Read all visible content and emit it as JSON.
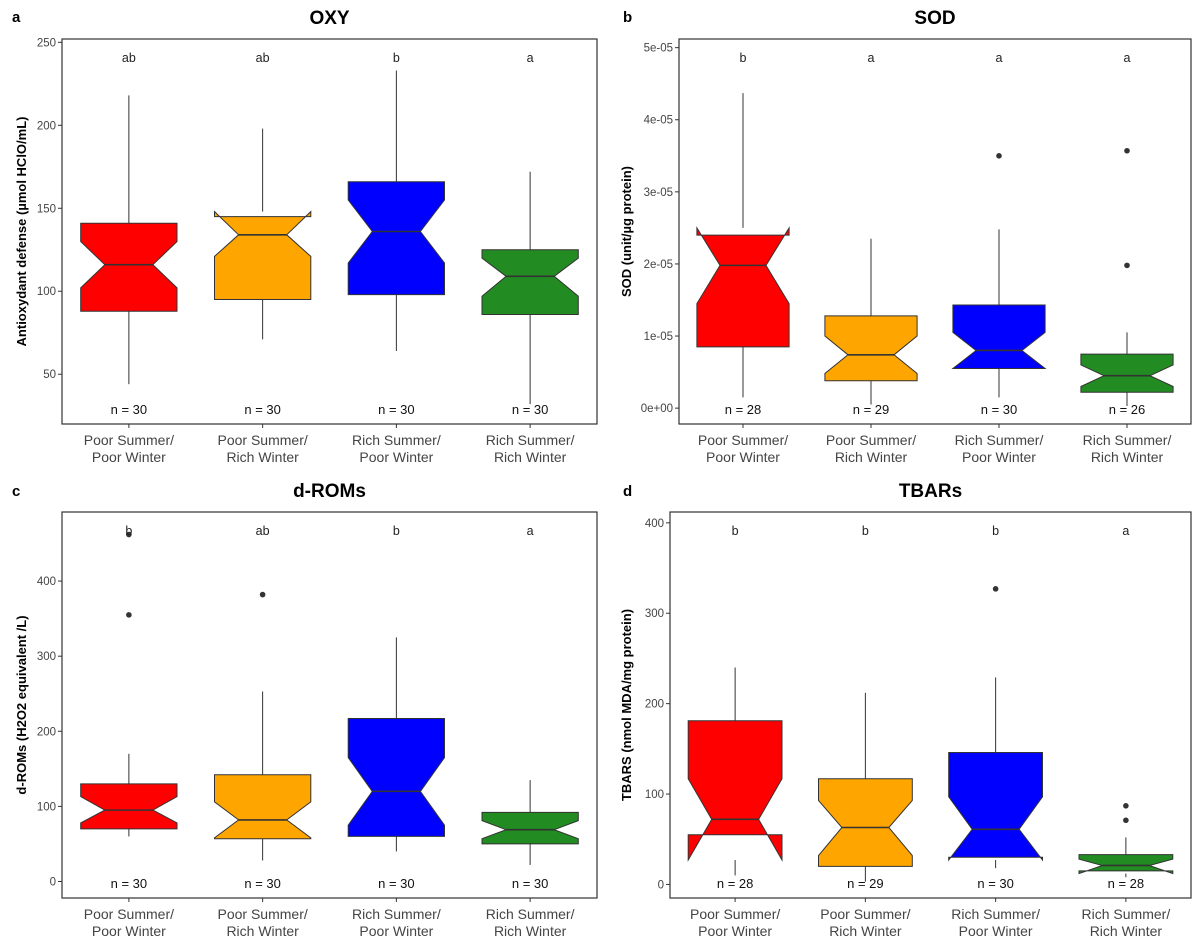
{
  "chart_data": [
    {
      "type": "box",
      "panel_label": "a",
      "title": "OXY",
      "ylabel": "Antioxydant defense (µmol HClO/mL)",
      "ylim": [
        20,
        252
      ],
      "yticks": [
        50,
        100,
        150,
        200,
        250
      ],
      "ytick_labels": [
        "50",
        "100",
        "150",
        "200",
        "250"
      ],
      "categories": [
        "Poor Summer/\nPoor Winter",
        "Poor Summer/\nRich Winter",
        "Rich Summer/\nPoor Winter",
        "Rich Summer/\nRich Winter"
      ],
      "colors": [
        "#ff0000",
        "#ffa500",
        "#0000ff",
        "#228b22"
      ],
      "letters": [
        "ab",
        "ab",
        "b",
        "a"
      ],
      "n_labels": [
        "n = 30",
        "n = 30",
        "n = 30",
        "n = 30"
      ],
      "boxes": [
        {
          "lower_whisker": 44,
          "q1": 88,
          "median": 116,
          "q3": 141,
          "upper_whisker": 218,
          "notch_low": 102,
          "notch_high": 130,
          "outliers": []
        },
        {
          "lower_whisker": 71,
          "q1": 95,
          "median": 134,
          "q3": 145,
          "upper_whisker": 198,
          "notch_low": 121,
          "notch_high": 148,
          "outliers": []
        },
        {
          "lower_whisker": 64,
          "q1": 98,
          "median": 136,
          "q3": 166,
          "upper_whisker": 233,
          "notch_low": 117,
          "notch_high": 155,
          "outliers": []
        },
        {
          "lower_whisker": 32,
          "q1": 86,
          "median": 109,
          "q3": 125,
          "upper_whisker": 172,
          "notch_low": 97,
          "notch_high": 120,
          "outliers": []
        }
      ]
    },
    {
      "type": "box",
      "panel_label": "b",
      "title": "SOD",
      "ylabel": "SOD (unit/µg protein)",
      "ylim": [
        -2.2e-06,
        5.12e-05
      ],
      "yticks": [
        0,
        1e-05,
        2e-05,
        3e-05,
        4e-05,
        5e-05
      ],
      "ytick_labels": [
        "0e+00",
        "1e-05",
        "2e-05",
        "3e-05",
        "4e-05",
        "5e-05"
      ],
      "categories": [
        "Poor Summer/\nPoor Winter",
        "Poor Summer/\nRich Winter",
        "Rich Summer/\nPoor Winter",
        "Rich Summer/\nRich Winter"
      ],
      "colors": [
        "#ff0000",
        "#ffa500",
        "#0000ff",
        "#228b22"
      ],
      "letters": [
        "b",
        "a",
        "a",
        "a"
      ],
      "n_labels": [
        "n = 28",
        "n = 29",
        "n = 30",
        "n = 26"
      ],
      "boxes": [
        {
          "lower_whisker": 1.5e-06,
          "q1": 8.5e-06,
          "median": 1.98e-05,
          "q3": 2.4e-05,
          "upper_whisker": 4.37e-05,
          "notch_low": 1.45e-05,
          "notch_high": 2.5e-05,
          "outliers": []
        },
        {
          "lower_whisker": 5e-07,
          "q1": 3.8e-06,
          "median": 7.4e-06,
          "q3": 1.28e-05,
          "upper_whisker": 2.35e-05,
          "notch_low": 4.8e-06,
          "notch_high": 1e-05,
          "outliers": []
        },
        {
          "lower_whisker": 1.5e-06,
          "q1": 5.5e-06,
          "median": 8e-06,
          "q3": 1.43e-05,
          "upper_whisker": 2.48e-05,
          "notch_low": 5.5e-06,
          "notch_high": 1.05e-05,
          "outliers": [
            3.5e-05
          ]
        },
        {
          "lower_whisker": 3e-07,
          "q1": 2.2e-06,
          "median": 4.5e-06,
          "q3": 7.5e-06,
          "upper_whisker": 1.05e-05,
          "notch_low": 3e-06,
          "notch_high": 6e-06,
          "outliers": [
            1.98e-05,
            3.57e-05
          ]
        }
      ]
    },
    {
      "type": "box",
      "panel_label": "c",
      "title": "d-ROMs",
      "ylabel": "d-ROMs (H2O2 equivalent /L)",
      "ylim": [
        -22,
        492
      ],
      "yticks": [
        0,
        100,
        200,
        300,
        400
      ],
      "ytick_labels": [
        "0",
        "100",
        "200",
        "300",
        "400"
      ],
      "categories": [
        "Poor Summer/\nPoor Winter",
        "Poor Summer/\nRich Winter",
        "Rich Summer/\nPoor Winter",
        "Rich Summer/\nRich Winter"
      ],
      "colors": [
        "#ff0000",
        "#ffa500",
        "#0000ff",
        "#228b22"
      ],
      "letters": [
        "b",
        "ab",
        "b",
        "a"
      ],
      "n_labels": [
        "n = 30",
        "n = 30",
        "n = 30",
        "n = 30"
      ],
      "boxes": [
        {
          "lower_whisker": 60,
          "q1": 70,
          "median": 95,
          "q3": 130,
          "upper_whisker": 170,
          "notch_low": 78,
          "notch_high": 113,
          "outliers": [
            355,
            462
          ]
        },
        {
          "lower_whisker": 28,
          "q1": 57,
          "median": 82,
          "q3": 142,
          "upper_whisker": 253,
          "notch_low": 58,
          "notch_high": 106,
          "outliers": [
            382
          ]
        },
        {
          "lower_whisker": 40,
          "q1": 60,
          "median": 120,
          "q3": 217,
          "upper_whisker": 325,
          "notch_low": 75,
          "notch_high": 165,
          "outliers": []
        },
        {
          "lower_whisker": 22,
          "q1": 50,
          "median": 69,
          "q3": 92,
          "upper_whisker": 135,
          "notch_low": 57,
          "notch_high": 81,
          "outliers": []
        }
      ]
    },
    {
      "type": "box",
      "panel_label": "d",
      "title": "TBARs",
      "ylabel": "TBARS (nmol MDA/mg protein)",
      "ylim": [
        -15,
        412
      ],
      "yticks": [
        0,
        100,
        200,
        300,
        400
      ],
      "ytick_labels": [
        "0",
        "100",
        "200",
        "300",
        "400"
      ],
      "categories": [
        "Poor Summer/\nPoor Winter",
        "Poor Summer/\nRich Winter",
        "Rich Summer/\nPoor Winter",
        "Rich Summer/\nRich Winter"
      ],
      "colors": [
        "#ff0000",
        "#ffa500",
        "#0000ff",
        "#228b22"
      ],
      "letters": [
        "b",
        "b",
        "b",
        "a"
      ],
      "n_labels": [
        "n = 28",
        "n = 29",
        "n = 30",
        "n = 28"
      ],
      "boxes": [
        {
          "lower_whisker": 10,
          "q1": 55,
          "median": 72,
          "q3": 181,
          "upper_whisker": 240,
          "notch_low": 27,
          "notch_high": 117,
          "outliers": []
        },
        {
          "lower_whisker": 3,
          "q1": 20,
          "median": 63,
          "q3": 117,
          "upper_whisker": 212,
          "notch_low": 32,
          "notch_high": 93,
          "outliers": []
        },
        {
          "lower_whisker": 18,
          "q1": 30,
          "median": 61,
          "q3": 146,
          "upper_whisker": 229,
          "notch_low": 27,
          "notch_high": 97,
          "outliers": [
            327
          ]
        },
        {
          "lower_whisker": 8,
          "q1": 15,
          "median": 21,
          "q3": 33,
          "upper_whisker": 52,
          "notch_low": 12,
          "notch_high": 28,
          "outliers": [
            71,
            87
          ]
        }
      ]
    }
  ]
}
